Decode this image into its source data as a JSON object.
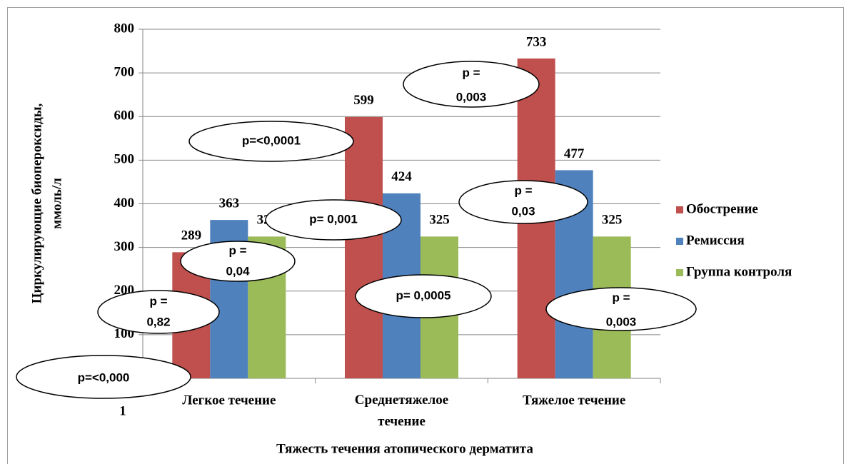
{
  "chart_data": {
    "type": "bar",
    "categories": [
      "Легкое течение",
      "Среднетяжелое течение",
      "Тяжелое течение"
    ],
    "series": [
      {
        "name": "Обострение",
        "color": "#c0504d",
        "values": [
          289,
          599,
          733
        ]
      },
      {
        "name": "Ремиссия",
        "color": "#4f81bd",
        "values": [
          363,
          424,
          477
        ]
      },
      {
        "name": "Группа контроля",
        "color": "#9bbb59",
        "values": [
          325,
          325,
          325
        ]
      }
    ],
    "ylim": [
      0,
      800
    ],
    "yticks": [
      0,
      100,
      200,
      300,
      400,
      500,
      600,
      700,
      800
    ],
    "grid": true,
    "y_label": [
      "Циркулирующие биопероксиды,",
      "ммоль/л"
    ],
    "x_label": "Тяжесть течения атопического дерматита",
    "legend": "right",
    "annotations": [
      {
        "lines": [
          "p=<0,000",
          "1"
        ]
      },
      {
        "lines": [
          "p =",
          "0,82"
        ]
      },
      {
        "lines": [
          "p =",
          "0,04"
        ]
      },
      {
        "lines": [
          "p=<0,0001"
        ]
      },
      {
        "lines": [
          "p= 0,001"
        ]
      },
      {
        "lines": [
          "p= 0,0005"
        ]
      },
      {
        "lines": [
          "p =",
          "0,003"
        ]
      },
      {
        "lines": [
          "p =",
          "0,03"
        ]
      },
      {
        "lines": [
          "p =",
          "0,003"
        ]
      }
    ]
  }
}
